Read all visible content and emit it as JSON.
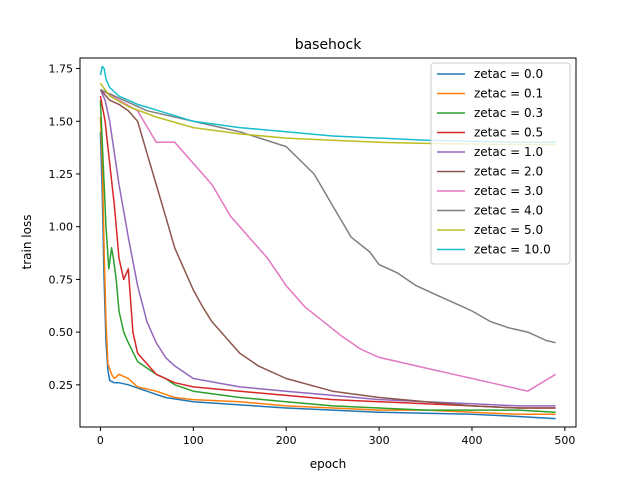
{
  "chart_data": {
    "type": "line",
    "title": "basehock",
    "xlabel": "epoch",
    "ylabel": "train loss",
    "xlim": [
      -22,
      512
    ],
    "ylim": [
      0.05,
      1.8
    ],
    "xticks": [
      0,
      100,
      200,
      300,
      400,
      500
    ],
    "yticks": [
      0.25,
      0.5,
      0.75,
      1.0,
      1.25,
      1.5,
      1.75
    ],
    "xtick_labels": [
      "0",
      "100",
      "200",
      "300",
      "400",
      "500"
    ],
    "ytick_labels": [
      "0.25",
      "0.50",
      "0.75",
      "1.00",
      "1.25",
      "1.50",
      "1.75"
    ],
    "grid": false,
    "legend_position": "top-right",
    "series": [
      {
        "name": "zetac = 0.0",
        "color": "#1f77b4",
        "x": [
          0,
          2,
          4,
          6,
          8,
          10,
          15,
          20,
          30,
          50,
          70,
          100,
          150,
          200,
          250,
          300,
          350,
          400,
          450,
          490
        ],
        "y": [
          1.45,
          1.15,
          0.75,
          0.45,
          0.32,
          0.27,
          0.26,
          0.26,
          0.25,
          0.22,
          0.19,
          0.17,
          0.155,
          0.14,
          0.13,
          0.12,
          0.115,
          0.11,
          0.1,
          0.09
        ]
      },
      {
        "name": "zetac = 0.1",
        "color": "#ff7f0e",
        "x": [
          0,
          2,
          4,
          6,
          8,
          12,
          15,
          20,
          30,
          40,
          60,
          80,
          100,
          150,
          200,
          250,
          300,
          350,
          400,
          450,
          490
        ],
        "y": [
          1.52,
          1.3,
          0.9,
          0.55,
          0.35,
          0.3,
          0.28,
          0.3,
          0.28,
          0.24,
          0.22,
          0.19,
          0.18,
          0.17,
          0.15,
          0.14,
          0.13,
          0.13,
          0.12,
          0.11,
          0.11
        ]
      },
      {
        "name": "zetac = 0.3",
        "color": "#2ca02c",
        "x": [
          0,
          3,
          6,
          9,
          12,
          14,
          17,
          20,
          25,
          30,
          40,
          50,
          60,
          70,
          80,
          100,
          150,
          200,
          250,
          300,
          350,
          400,
          450,
          490
        ],
        "y": [
          1.6,
          1.3,
          1.0,
          0.8,
          0.9,
          0.85,
          0.75,
          0.6,
          0.5,
          0.45,
          0.36,
          0.33,
          0.3,
          0.28,
          0.25,
          0.22,
          0.19,
          0.17,
          0.15,
          0.14,
          0.13,
          0.13,
          0.13,
          0.12
        ]
      },
      {
        "name": "zetac = 0.5",
        "color": "#d62728",
        "x": [
          0,
          5,
          10,
          15,
          20,
          25,
          30,
          35,
          40,
          50,
          60,
          80,
          100,
          150,
          200,
          250,
          300,
          350,
          400,
          450,
          490
        ],
        "y": [
          1.62,
          1.5,
          1.3,
          1.1,
          0.85,
          0.75,
          0.8,
          0.5,
          0.4,
          0.35,
          0.3,
          0.26,
          0.24,
          0.22,
          0.2,
          0.18,
          0.17,
          0.16,
          0.15,
          0.14,
          0.14
        ]
      },
      {
        "name": "zetac = 1.0",
        "color": "#9467bd",
        "x": [
          0,
          5,
          10,
          20,
          30,
          40,
          50,
          60,
          70,
          80,
          100,
          150,
          200,
          250,
          300,
          350,
          400,
          450,
          490
        ],
        "y": [
          1.65,
          1.6,
          1.5,
          1.2,
          0.95,
          0.72,
          0.55,
          0.45,
          0.38,
          0.34,
          0.28,
          0.24,
          0.22,
          0.2,
          0.18,
          0.17,
          0.16,
          0.15,
          0.15
        ]
      },
      {
        "name": "zetac = 2.0",
        "color": "#8c564b",
        "x": [
          0,
          10,
          20,
          30,
          40,
          50,
          60,
          70,
          80,
          90,
          100,
          110,
          120,
          130,
          140,
          150,
          170,
          200,
          250,
          300,
          350,
          400,
          450,
          490
        ],
        "y": [
          1.65,
          1.6,
          1.58,
          1.55,
          1.5,
          1.35,
          1.2,
          1.05,
          0.9,
          0.8,
          0.7,
          0.62,
          0.55,
          0.5,
          0.45,
          0.4,
          0.34,
          0.28,
          0.22,
          0.19,
          0.17,
          0.15,
          0.14,
          0.14
        ]
      },
      {
        "name": "zetac = 3.0",
        "color": "#e377c2",
        "x": [
          0,
          20,
          40,
          60,
          80,
          100,
          120,
          140,
          160,
          180,
          200,
          220,
          240,
          260,
          280,
          300,
          320,
          340,
          360,
          380,
          400,
          420,
          440,
          460,
          490
        ],
        "y": [
          1.65,
          1.6,
          1.55,
          1.4,
          1.4,
          1.3,
          1.2,
          1.05,
          0.95,
          0.85,
          0.72,
          0.62,
          0.55,
          0.48,
          0.42,
          0.38,
          0.36,
          0.34,
          0.32,
          0.3,
          0.28,
          0.26,
          0.24,
          0.22,
          0.3
        ]
      },
      {
        "name": "zetac = 4.0",
        "color": "#7f7f7f",
        "x": [
          0,
          50,
          100,
          150,
          200,
          230,
          250,
          270,
          290,
          300,
          320,
          340,
          360,
          380,
          400,
          420,
          440,
          460,
          480,
          490
        ],
        "y": [
          1.65,
          1.55,
          1.5,
          1.45,
          1.38,
          1.25,
          1.1,
          0.95,
          0.88,
          0.82,
          0.78,
          0.72,
          0.68,
          0.64,
          0.6,
          0.55,
          0.52,
          0.5,
          0.46,
          0.45
        ]
      },
      {
        "name": "zetac = 5.0",
        "color": "#bcbd22",
        "x": [
          0,
          10,
          30,
          60,
          100,
          150,
          200,
          250,
          300,
          350,
          400,
          450,
          490
        ],
        "y": [
          1.68,
          1.62,
          1.57,
          1.52,
          1.47,
          1.44,
          1.42,
          1.41,
          1.4,
          1.395,
          1.392,
          1.39,
          1.39
        ]
      },
      {
        "name": "zetac = 10.0",
        "color": "#17becf",
        "x": [
          0,
          2,
          4,
          6,
          8,
          10,
          20,
          40,
          70,
          100,
          150,
          200,
          250,
          300,
          350,
          400,
          450,
          490
        ],
        "y": [
          1.72,
          1.76,
          1.75,
          1.7,
          1.68,
          1.66,
          1.62,
          1.58,
          1.54,
          1.5,
          1.47,
          1.45,
          1.43,
          1.42,
          1.41,
          1.405,
          1.4,
          1.4
        ]
      }
    ]
  }
}
